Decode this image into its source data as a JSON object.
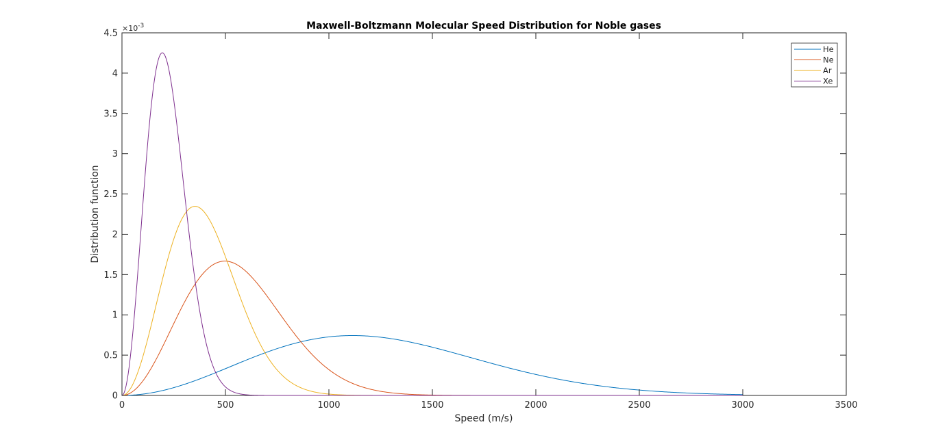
{
  "chart_data": {
    "type": "line",
    "title": "Maxwell-Boltzmann Molecular Speed Distribution for Noble gases",
    "xlabel": "Speed (m/s)",
    "ylabel": "Distribution function",
    "y_exponent_label": "×10",
    "y_exponent_power": "-3",
    "xlim": [
      0,
      3500
    ],
    "ylim": [
      0,
      0.0045
    ],
    "x_ticks": [
      0,
      500,
      1000,
      1500,
      2000,
      2500,
      3000,
      3500
    ],
    "x_tick_labels": [
      "0",
      "500",
      "1000",
      "1500",
      "2000",
      "2500",
      "3000",
      "3500"
    ],
    "y_ticks": [
      0,
      0.0005,
      0.001,
      0.0015,
      0.002,
      0.0025,
      0.003,
      0.0035,
      0.004,
      0.0045
    ],
    "y_tick_labels": [
      "0",
      "0.5",
      "1",
      "1.5",
      "2",
      "2.5",
      "3",
      "3.5",
      "4",
      "4.5"
    ],
    "grid": false,
    "legend_position": "top-right",
    "x_range": [
      0,
      3000
    ],
    "series": [
      {
        "name": "He",
        "color": "#0072BD",
        "peak_speed": 1115,
        "peak_value": 0.000743
      },
      {
        "name": "Ne",
        "color": "#D95319",
        "peak_speed": 497,
        "peak_value": 0.001667
      },
      {
        "name": "Ar",
        "color": "#EDB120",
        "peak_speed": 353,
        "peak_value": 0.002347
      },
      {
        "name": "Xe",
        "color": "#7E2F8E",
        "peak_speed": 195,
        "peak_value": 0.004253
      }
    ]
  }
}
